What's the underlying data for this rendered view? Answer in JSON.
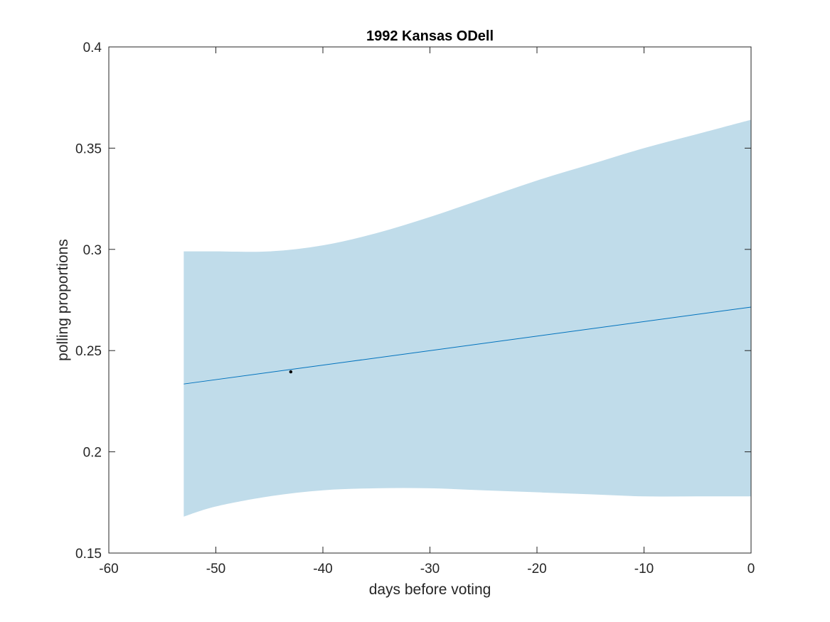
{
  "chart_data": {
    "type": "line",
    "title": "1992 Kansas ODell",
    "xlabel": "days before voting",
    "ylabel": "polling proportions",
    "xlim": [
      -60,
      0
    ],
    "ylim": [
      0.15,
      0.4
    ],
    "xticks": [
      -60,
      -50,
      -40,
      -30,
      -20,
      -10,
      0
    ],
    "yticks": [
      0.15,
      0.2,
      0.25,
      0.3,
      0.35,
      0.4
    ],
    "xtick_labels": [
      "-60",
      "-50",
      "-40",
      "-30",
      "-20",
      "-10",
      "0"
    ],
    "ytick_labels": [
      "0.15",
      "0.2",
      "0.25",
      "0.3",
      "0.35",
      "0.4"
    ],
    "grid": false,
    "band": {
      "x": [
        -53,
        -50,
        -45,
        -40,
        -35,
        -30,
        -25,
        -20,
        -15,
        -10,
        -5,
        0
      ],
      "upper": [
        0.299,
        0.299,
        0.299,
        0.302,
        0.308,
        0.316,
        0.325,
        0.334,
        0.342,
        0.35,
        0.357,
        0.364
      ],
      "lower": [
        0.168,
        0.173,
        0.178,
        0.181,
        0.182,
        0.182,
        0.181,
        0.18,
        0.179,
        0.178,
        0.178,
        0.178
      ],
      "color": "#c0dcea"
    },
    "series": [
      {
        "x": [
          -53,
          0
        ],
        "y": [
          0.2335,
          0.2715
        ],
        "color": "#0072bd"
      }
    ],
    "points": [
      {
        "x": -43,
        "y": 0.2395,
        "color": "#000000"
      }
    ]
  }
}
